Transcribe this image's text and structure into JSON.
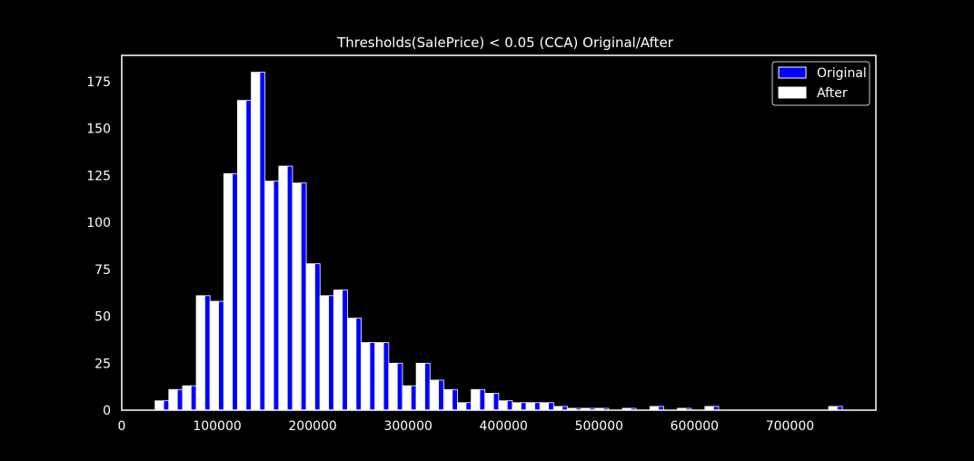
{
  "chart_data": {
    "type": "bar",
    "title": "Thresholds(SalePrice) < 0.05 (CCA) Original/After",
    "xlabel": "",
    "ylabel": "",
    "xlim": [
      0,
      790000
    ],
    "ylim": [
      0,
      189
    ],
    "x_ticks": [
      0,
      100000,
      200000,
      300000,
      400000,
      500000,
      600000,
      700000
    ],
    "y_ticks": [
      0,
      25,
      50,
      75,
      100,
      125,
      150,
      175
    ],
    "grid": false,
    "legend_position": "top-right",
    "bin_width": 14400,
    "bin_starts": [
      34900,
      49300,
      63700,
      78100,
      92500,
      106900,
      121300,
      135700,
      150100,
      164500,
      178900,
      193300,
      207700,
      222100,
      236500,
      250900,
      265300,
      279700,
      294100,
      308500,
      322900,
      337300,
      351700,
      366100,
      380500,
      394900,
      409300,
      423700,
      438100,
      452500,
      466900,
      481300,
      495700,
      510100,
      524500,
      538900,
      553300,
      567700,
      582100,
      596500,
      610900,
      625300,
      639700,
      654100,
      668500,
      682900,
      697300,
      711700,
      726100,
      740500
    ],
    "series": [
      {
        "name": "Original",
        "color": "#0000ff",
        "values": [
          5,
          11,
          13,
          61,
          58,
          126,
          165,
          180,
          122,
          130,
          121,
          78,
          61,
          64,
          49,
          36,
          36,
          25,
          13,
          25,
          16,
          11,
          4,
          11,
          9,
          5,
          4,
          4,
          4,
          2,
          1,
          1,
          1,
          0,
          1,
          0,
          2,
          0,
          1,
          0,
          2,
          0,
          0,
          0,
          0,
          0,
          0,
          0,
          0,
          2
        ]
      },
      {
        "name": "After",
        "color": "#ffffff",
        "values": [
          5,
          11,
          13,
          61,
          58,
          126,
          165,
          180,
          122,
          130,
          121,
          78,
          61,
          64,
          49,
          36,
          36,
          25,
          13,
          25,
          16,
          11,
          4,
          11,
          9,
          5,
          4,
          4,
          4,
          2,
          1,
          1,
          1,
          0,
          1,
          0,
          2,
          0,
          1,
          0,
          2,
          0,
          0,
          0,
          0,
          0,
          0,
          0,
          0,
          2
        ]
      }
    ]
  }
}
